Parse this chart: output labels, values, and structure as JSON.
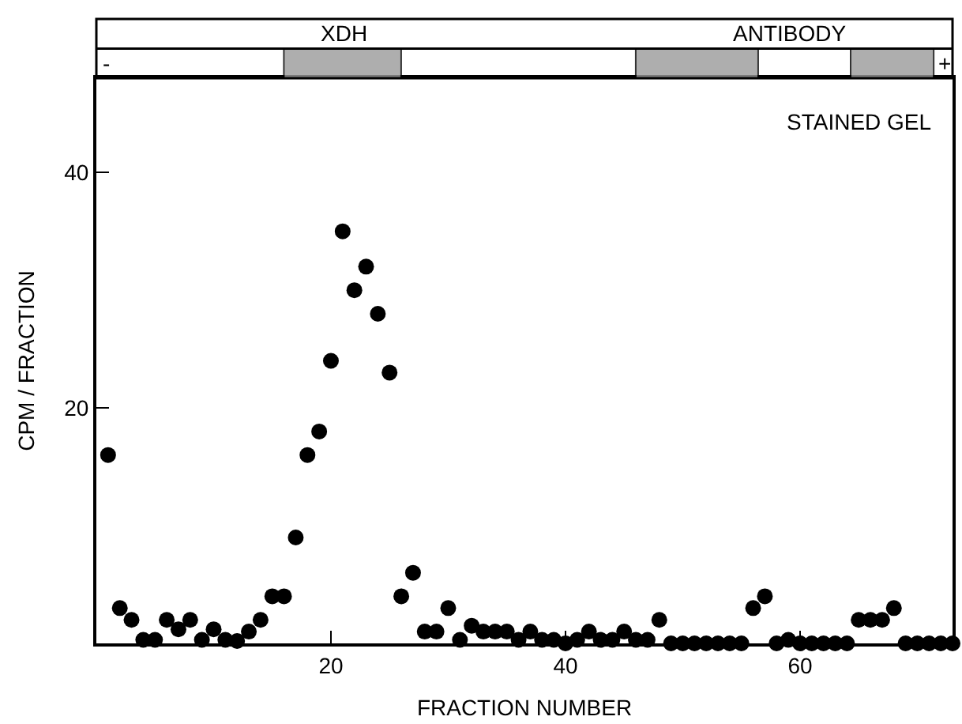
{
  "chart_data": {
    "type": "scatter",
    "xlabel": "FRACTION NUMBER",
    "ylabel": "CPM / FRACTION",
    "x": [
      1,
      2,
      3,
      4,
      5,
      6,
      7,
      8,
      9,
      10,
      11,
      12,
      13,
      14,
      15,
      16,
      17,
      18,
      19,
      20,
      21,
      22,
      23,
      24,
      25,
      26,
      27,
      28,
      29,
      30,
      31,
      32,
      33,
      34,
      35,
      36,
      37,
      38,
      39,
      40,
      41,
      42,
      43,
      44,
      45,
      46,
      47,
      48,
      49,
      50,
      51,
      52,
      53,
      54,
      55,
      56,
      57,
      58,
      59,
      60,
      61,
      62,
      63,
      64,
      65,
      66,
      67,
      68,
      69,
      70,
      71,
      72,
      73
    ],
    "series": [
      {
        "color": "#000000",
        "values": [
          16,
          3,
          2,
          0.3,
          0.3,
          2,
          1.2,
          2,
          0.3,
          1.2,
          0.3,
          0.2,
          1,
          2,
          4,
          4,
          9,
          16,
          18,
          24,
          35,
          30,
          32,
          28,
          23,
          4,
          6,
          1,
          1,
          3,
          0.3,
          1.5,
          1,
          1,
          1,
          0.3,
          1,
          0.3,
          0.3,
          0,
          0.3,
          1,
          0.3,
          0.3,
          1,
          0.3,
          0.3,
          2,
          0,
          0,
          0,
          0,
          0,
          0,
          0,
          3,
          4,
          0,
          0.3,
          0,
          0,
          0,
          0,
          0,
          2,
          2,
          2,
          3,
          0,
          0,
          0,
          0,
          0
        ]
      }
    ],
    "xlim": [
      0,
      73
    ],
    "ylim": [
      0,
      48
    ],
    "xticks": [
      20,
      40,
      60
    ],
    "yticks": [
      20,
      40
    ],
    "annotations": [
      "XDH",
      "ANTIBODY",
      "-",
      "+",
      "STAINED GEL"
    ],
    "marker": "circle",
    "grid": false
  }
}
